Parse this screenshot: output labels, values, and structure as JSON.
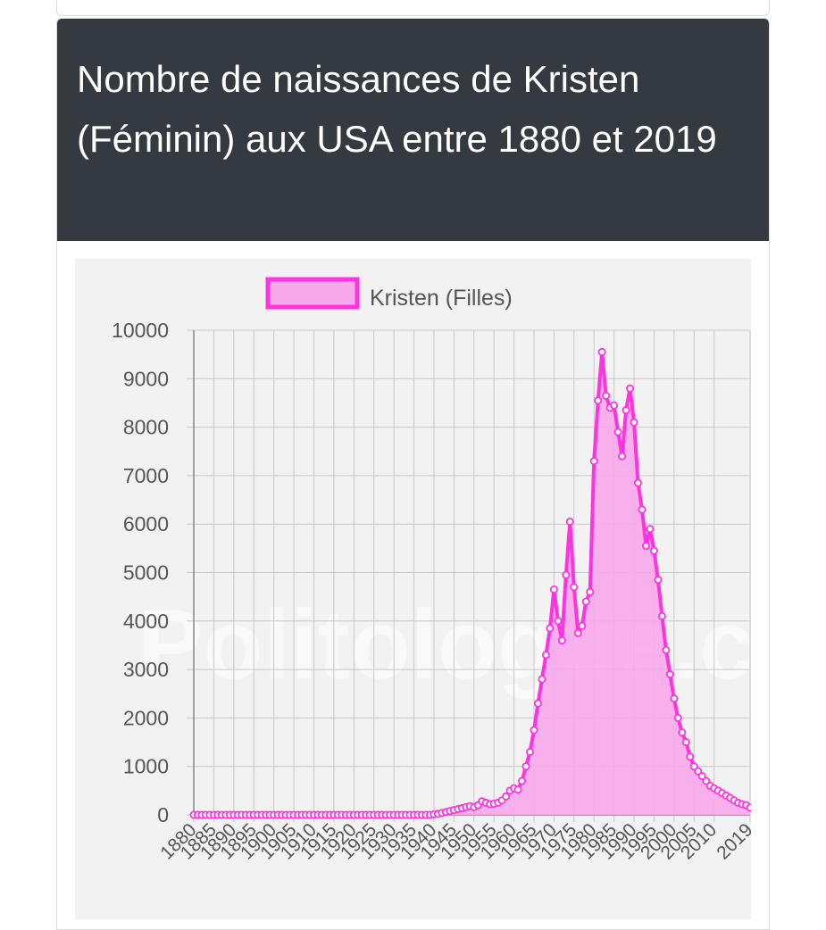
{
  "card": {
    "title": "Nombre de naissances de Kristen (Féminin) aux USA entre 1880 et 2019"
  },
  "watermark": "Politologue.com",
  "colors": {
    "line": "#ff33e0",
    "fill": "#f7a8ea",
    "header_bg": "#343a40",
    "plot_bg": "#f2f2f2"
  },
  "chart_data": {
    "type": "area",
    "title": "",
    "xlabel": "",
    "ylabel": "",
    "legend": {
      "position": "top",
      "entries": [
        "Kristen (Filles)"
      ]
    },
    "grid": true,
    "ylim": [
      0,
      10000
    ],
    "yticks": [
      0,
      1000,
      2000,
      3000,
      4000,
      5000,
      6000,
      7000,
      8000,
      9000,
      10000
    ],
    "xtick_labels": [
      "1880",
      "1885",
      "1890",
      "1895",
      "1900",
      "1905",
      "1910",
      "1915",
      "1920",
      "1925",
      "1930",
      "1935",
      "1940",
      "1945",
      "1950",
      "1955",
      "1960",
      "1965",
      "1970",
      "1975",
      "1980",
      "1985",
      "1990",
      "1995",
      "2000",
      "2005",
      "2010",
      "2019"
    ],
    "series": [
      {
        "name": "Kristen (Filles)",
        "x": [
          1880,
          1881,
          1882,
          1883,
          1884,
          1885,
          1886,
          1887,
          1888,
          1889,
          1890,
          1891,
          1892,
          1893,
          1894,
          1895,
          1896,
          1897,
          1898,
          1899,
          1900,
          1901,
          1902,
          1903,
          1904,
          1905,
          1906,
          1907,
          1908,
          1909,
          1910,
          1911,
          1912,
          1913,
          1914,
          1915,
          1916,
          1917,
          1918,
          1919,
          1920,
          1921,
          1922,
          1923,
          1924,
          1925,
          1926,
          1927,
          1928,
          1929,
          1930,
          1931,
          1932,
          1933,
          1934,
          1935,
          1936,
          1937,
          1938,
          1939,
          1940,
          1941,
          1942,
          1943,
          1944,
          1945,
          1946,
          1947,
          1948,
          1949,
          1950,
          1951,
          1952,
          1953,
          1954,
          1955,
          1956,
          1957,
          1958,
          1959,
          1960,
          1961,
          1962,
          1963,
          1964,
          1965,
          1966,
          1967,
          1968,
          1969,
          1970,
          1971,
          1972,
          1973,
          1974,
          1975,
          1976,
          1977,
          1978,
          1979,
          1980,
          1981,
          1982,
          1983,
          1984,
          1985,
          1986,
          1987,
          1988,
          1989,
          1990,
          1991,
          1992,
          1993,
          1994,
          1995,
          1996,
          1997,
          1998,
          1999,
          2000,
          2001,
          2002,
          2003,
          2004,
          2005,
          2006,
          2007,
          2008,
          2009,
          2010,
          2011,
          2012,
          2013,
          2014,
          2015,
          2016,
          2017,
          2018,
          2019
        ],
        "values": [
          0,
          0,
          0,
          0,
          0,
          0,
          0,
          0,
          0,
          0,
          0,
          0,
          0,
          0,
          0,
          0,
          0,
          0,
          0,
          0,
          0,
          0,
          0,
          0,
          0,
          0,
          0,
          0,
          0,
          0,
          0,
          0,
          0,
          0,
          0,
          0,
          0,
          0,
          0,
          0,
          0,
          0,
          0,
          0,
          0,
          0,
          0,
          0,
          0,
          0,
          0,
          0,
          0,
          0,
          0,
          0,
          0,
          0,
          0,
          0,
          10,
          20,
          40,
          60,
          80,
          100,
          120,
          140,
          160,
          180,
          160,
          200,
          280,
          250,
          220,
          230,
          250,
          300,
          380,
          500,
          550,
          520,
          700,
          1000,
          1300,
          1750,
          2300,
          2800,
          3300,
          3850,
          4650,
          4000,
          3600,
          4950,
          6050,
          4700,
          3750,
          3900,
          4400,
          4600,
          7300,
          8550,
          9550,
          8650,
          8400,
          8450,
          7900,
          7400,
          8350,
          8800,
          8100,
          6850,
          6300,
          5550,
          5900,
          5450,
          4850,
          4100,
          3400,
          2900,
          2400,
          2000,
          1700,
          1500,
          1200,
          1000,
          900,
          800,
          700,
          600,
          550,
          500,
          450,
          400,
          350,
          300,
          250,
          220,
          200,
          150
        ]
      }
    ]
  }
}
